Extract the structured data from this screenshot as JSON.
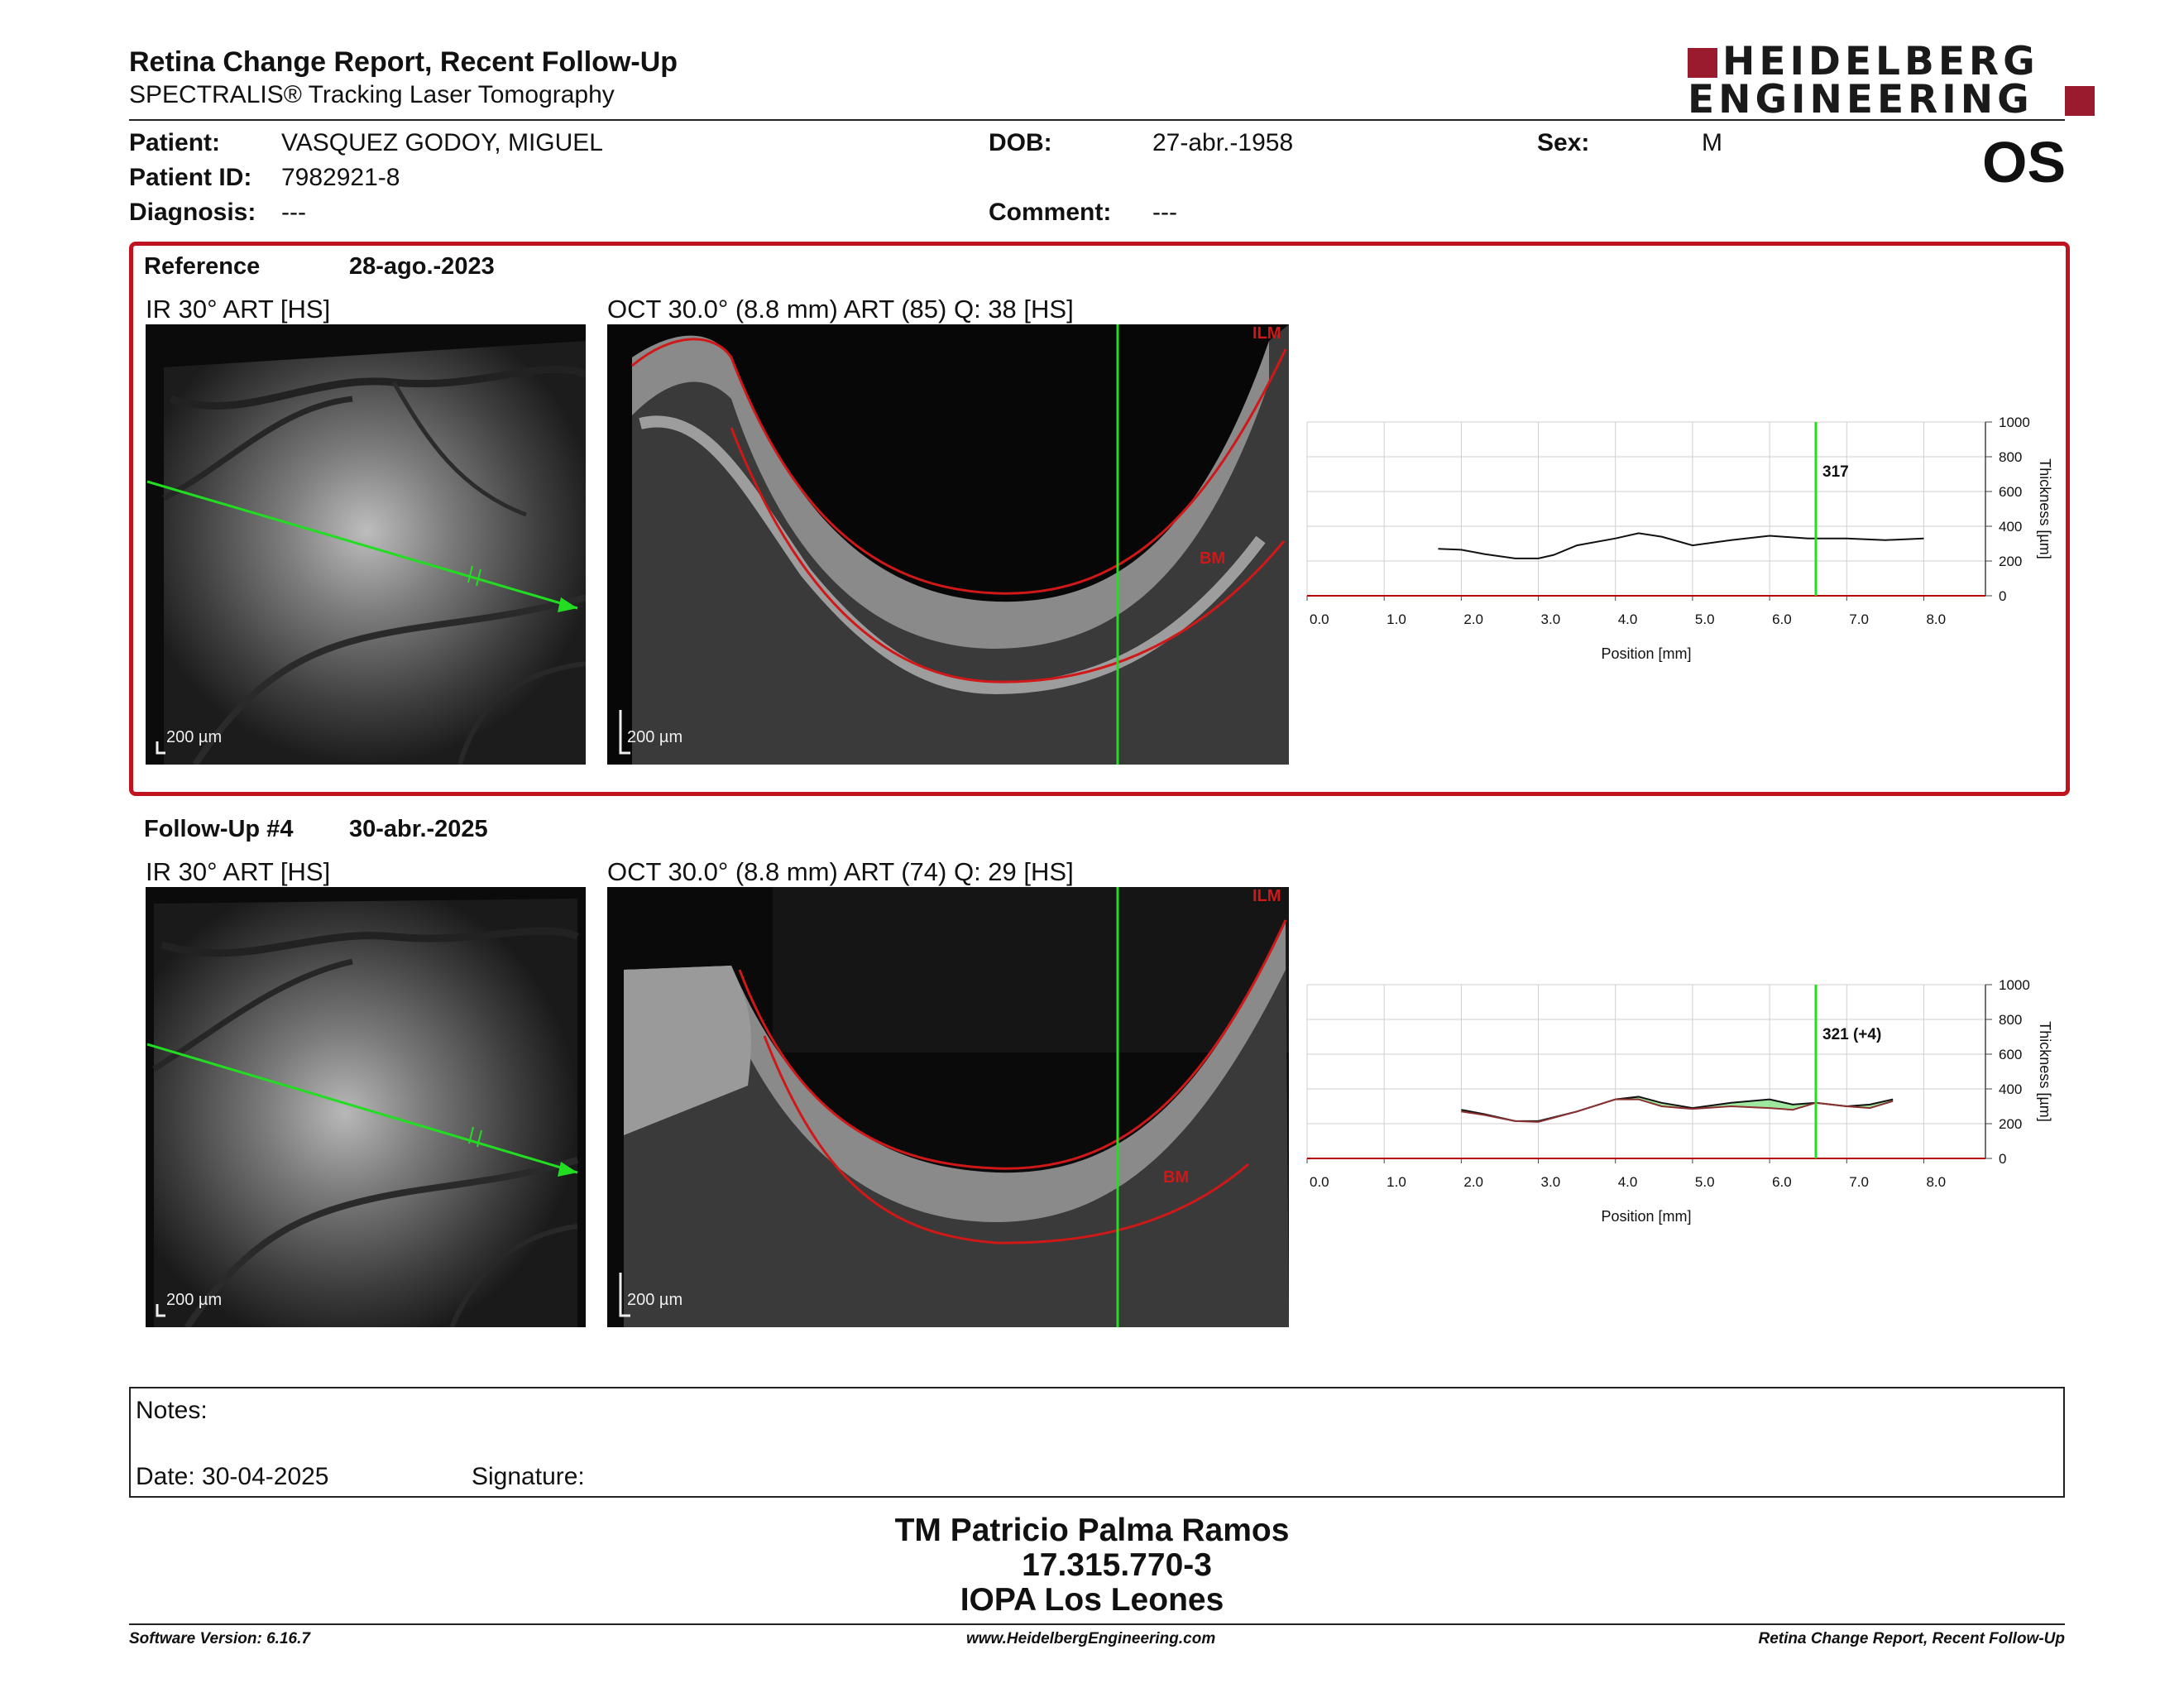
{
  "report": {
    "title": "Retina Change Report, Recent Follow-Up",
    "subtitle": "SPECTRALIS® Tracking Laser Tomography",
    "brand_line1": "HEIDELBERG",
    "brand_line2": "ENGINEERING",
    "eye": "OS"
  },
  "patient": {
    "name_label": "Patient:",
    "name": "VASQUEZ GODOY, MIGUEL",
    "id_label": "Patient ID:",
    "id": "7982921-8",
    "diagnosis_label": "Diagnosis:",
    "diagnosis": "---",
    "dob_label": "DOB:",
    "dob": "27-abr.-1958",
    "comment_label": "Comment:",
    "comment": "---",
    "sex_label": "Sex:",
    "sex": "M"
  },
  "reference": {
    "label": "Reference",
    "date": "28-ago.-2023",
    "ir_caption": "IR 30° ART [HS]",
    "oct_caption": "OCT 30.0° (8.8 mm) ART (85) Q: 38 [HS]",
    "scale": "200 µm",
    "ilm_label": "ILM",
    "bm_label": "BM"
  },
  "followup": {
    "label": "Follow-Up #4",
    "date": "30-abr.-2025",
    "ir_caption": "IR 30° ART [HS]",
    "oct_caption": "OCT 30.0° (8.8 mm) ART (74) Q: 29 [HS]",
    "scale": "200 µm",
    "ilm_label": "ILM",
    "bm_label": "BM"
  },
  "chart_data": [
    {
      "type": "line",
      "xlabel": "Position [mm]",
      "ylabel": "Thickness [µm]",
      "xlim": [
        0,
        8.8
      ],
      "ylim": [
        0,
        1000
      ],
      "x_ticks": [
        "0.0",
        "1.0",
        "2.0",
        "3.0",
        "4.0",
        "5.0",
        "6.0",
        "7.0",
        "8.0"
      ],
      "y_ticks": [
        "0",
        "200",
        "400",
        "600",
        "800",
        "1000"
      ],
      "cursor_x": 6.6,
      "cursor_label": "317",
      "grid": true,
      "series": [
        {
          "x": [
            1.7,
            2.0,
            2.3,
            2.7,
            3.0,
            3.2,
            3.5,
            4.0,
            4.3,
            4.6,
            5.0,
            5.5,
            6.0,
            6.5,
            7.0,
            7.5,
            8.0
          ],
          "values": [
            270,
            265,
            240,
            215,
            215,
            235,
            290,
            330,
            360,
            340,
            290,
            320,
            345,
            330,
            330,
            320,
            330
          ]
        }
      ]
    },
    {
      "type": "area",
      "xlabel": "Position [mm]",
      "ylabel": "Thickness [µm]",
      "xlim": [
        0,
        8.8
      ],
      "ylim": [
        0,
        1000
      ],
      "x_ticks": [
        "0.0",
        "1.0",
        "2.0",
        "3.0",
        "4.0",
        "5.0",
        "6.0",
        "7.0",
        "8.0"
      ],
      "y_ticks": [
        "0",
        "200",
        "400",
        "600",
        "800",
        "1000"
      ],
      "cursor_x": 6.6,
      "cursor_label": "321 (+4)",
      "grid": true,
      "series": [
        {
          "x": [
            2.0,
            2.3,
            2.7,
            3.0,
            3.5,
            4.0,
            4.3,
            4.6,
            5.0,
            5.5,
            6.0,
            6.3,
            6.6,
            7.0,
            7.3,
            7.6
          ],
          "values": [
            280,
            255,
            215,
            215,
            270,
            340,
            355,
            320,
            290,
            320,
            340,
            310,
            320,
            300,
            310,
            340
          ]
        },
        {
          "x": [
            2.0,
            2.3,
            2.7,
            3.0,
            3.5,
            4.0,
            4.3,
            4.6,
            5.0,
            5.5,
            6.0,
            6.3,
            6.6,
            7.0,
            7.3,
            7.6
          ],
          "values": [
            270,
            250,
            215,
            210,
            270,
            340,
            340,
            300,
            285,
            300,
            290,
            280,
            320,
            300,
            290,
            330
          ]
        }
      ]
    }
  ],
  "notes": {
    "label": "Notes:",
    "date_text": "Date: 30-04-2025",
    "signature_label": "Signature:"
  },
  "signature": {
    "line1": "TM Patricio Palma Ramos",
    "line2": "17.315.770-3",
    "line3": "IOPA Los Leones"
  },
  "footer": {
    "left": "Software Version: 6.16.7",
    "center": "www.HeidelbergEngineering.com",
    "right": "Retina Change Report, Recent Follow-Up"
  },
  "colors": {
    "frame_red": "#c1121f",
    "logo_red": "#9b1b2e",
    "scan_green": "#22dd22",
    "layer_red": "#d01818",
    "diff_green": "#7fe07f"
  }
}
